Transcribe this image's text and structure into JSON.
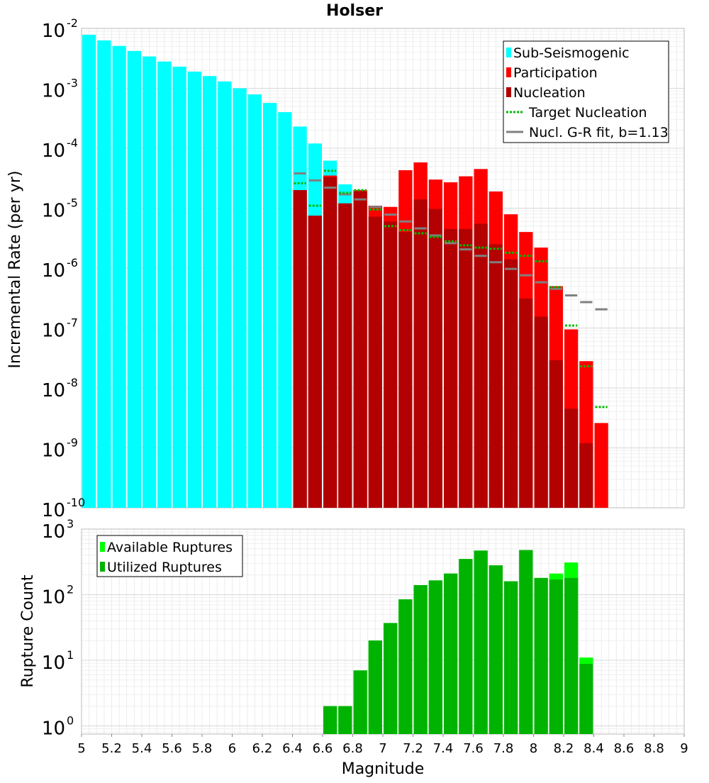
{
  "chart_data": [
    {
      "type": "bar",
      "title": "Holser",
      "ylabel": "Incremental Rate (per yr)",
      "xlim": [
        5,
        9
      ],
      "ylim": [
        1e-10,
        0.01
      ],
      "yscale": "log",
      "grid": true,
      "bar_width": 0.1,
      "y_tick_labels": [
        {
          "base": "10",
          "exp": "-10"
        },
        {
          "base": "10",
          "exp": "-9"
        },
        {
          "base": "10",
          "exp": "-8"
        },
        {
          "base": "10",
          "exp": "-7"
        },
        {
          "base": "10",
          "exp": "-6"
        },
        {
          "base": "10",
          "exp": "-5"
        },
        {
          "base": "10",
          "exp": "-4"
        },
        {
          "base": "10",
          "exp": "-3"
        },
        {
          "base": "10",
          "exp": "-2"
        }
      ],
      "legend": {
        "position": "top-right",
        "entries": [
          "Sub-Seismogenic",
          "Participation",
          "Nucleation",
          "Target Nucleation",
          "Nucl. G-R fit, b=1.13"
        ]
      },
      "colors": {
        "sub_seismogenic": "#00ffff",
        "participation": "#ff0000",
        "nucleation": "#b30000",
        "target_nucleation": "#00bb00",
        "gr_fit": "#808080"
      },
      "series": [
        {
          "name": "Sub-Seismogenic",
          "kind": "bars",
          "x": [
            5.05,
            5.15,
            5.25,
            5.35,
            5.45,
            5.55,
            5.65,
            5.75,
            5.85,
            5.95,
            6.05,
            6.15,
            6.25,
            6.35,
            6.45,
            6.55,
            6.65,
            6.75
          ],
          "values": [
            0.0078,
            0.0063,
            0.0051,
            0.0042,
            0.0034,
            0.0028,
            0.0023,
            0.0019,
            0.0016,
            0.0013,
            0.001,
            0.00079,
            0.00057,
            0.0004,
            0.00023,
            0.00012,
            6.2e-05,
            2.5e-05
          ]
        },
        {
          "name": "Participation",
          "kind": "bars",
          "x": [
            6.45,
            6.55,
            6.65,
            6.75,
            6.85,
            6.95,
            7.05,
            7.15,
            7.25,
            7.35,
            7.45,
            7.55,
            7.65,
            7.75,
            7.85,
            7.95,
            8.05,
            8.15,
            8.25,
            8.35,
            8.45
          ],
          "values": [
            2e-05,
            7.5e-06,
            3.5e-05,
            1.2e-05,
            2e-05,
            1.1e-05,
            1.05e-05,
            4.3e-05,
            5.8e-05,
            3e-05,
            2.7e-05,
            3.4e-05,
            4.5e-05,
            1.9e-05,
            7.9e-06,
            4e-06,
            2.2e-06,
            5e-07,
            9.5e-08,
            2.8e-08,
            2.6e-09
          ]
        },
        {
          "name": "Nucleation",
          "kind": "bars",
          "x": [
            6.45,
            6.55,
            6.65,
            6.75,
            6.85,
            6.95,
            7.05,
            7.15,
            7.25,
            7.35,
            7.45,
            7.55,
            7.65,
            7.75,
            7.85,
            7.95,
            8.05,
            8.15,
            8.25,
            8.35
          ],
          "values": [
            2e-05,
            7.5e-06,
            3.3e-05,
            1.2e-05,
            1.9e-05,
            7.2e-06,
            6e-06,
            4e-06,
            1.4e-05,
            9.7e-06,
            4.5e-06,
            4.5e-06,
            5.5e-06,
            2.5e-06,
            1.4e-06,
            3.1e-07,
            1.55e-07,
            2.9e-08,
            4.5e-09,
            1.2e-09
          ]
        },
        {
          "name": "Target Nucleation",
          "kind": "segments",
          "x": [
            6.45,
            6.55,
            6.65,
            6.75,
            6.85,
            6.95,
            7.05,
            7.15,
            7.25,
            7.35,
            7.45,
            7.55,
            7.65,
            7.75,
            7.85,
            7.95,
            8.05,
            8.15,
            8.25,
            8.35,
            8.45
          ],
          "values": [
            2.6e-05,
            1.1e-05,
            4.2e-05,
            1.8e-05,
            2e-05,
            9.5e-06,
            5e-06,
            4.3e-06,
            3.8e-06,
            3.3e-06,
            2.8e-06,
            2.4e-06,
            2.2e-06,
            2.1e-06,
            1.8e-06,
            1.6e-06,
            1.3e-06,
            4.8e-07,
            1.1e-07,
            2.3e-08,
            4.8e-09
          ]
        },
        {
          "name": "Nucl. G-R fit, b=1.13",
          "kind": "segments",
          "x": [
            6.45,
            6.55,
            6.65,
            6.75,
            6.85,
            6.95,
            7.05,
            7.15,
            7.25,
            7.35,
            7.45,
            7.55,
            7.65,
            7.75,
            7.85,
            7.95,
            8.05,
            8.15,
            8.25,
            8.35,
            8.45
          ],
          "values": [
            3.8e-05,
            2.9e-05,
            2.2e-05,
            1.7e-05,
            1.4e-05,
            1.05e-05,
            7.8e-06,
            6e-06,
            4.6e-06,
            3.5e-06,
            2.6e-06,
            2.05e-06,
            1.6e-06,
            1.25e-06,
            9.7e-07,
            7.6e-07,
            5.8e-07,
            4.5e-07,
            3.5e-07,
            2.7e-07,
            2.05e-07
          ]
        }
      ]
    },
    {
      "type": "bar",
      "xlabel": "Magnitude",
      "ylabel": "Rupture Count",
      "xlim": [
        5,
        9
      ],
      "ylim": [
        0.75,
        1000
      ],
      "yscale": "log",
      "grid": true,
      "bar_width": 0.1,
      "x_tick_labels": [
        "5",
        "5.2",
        "5.4",
        "5.6",
        "5.8",
        "6",
        "6.2",
        "6.4",
        "6.6",
        "6.8",
        "7",
        "7.2",
        "7.4",
        "7.6",
        "7.8",
        "8",
        "8.2",
        "8.4",
        "8.6",
        "8.8",
        "9"
      ],
      "y_tick_labels": [
        {
          "base": "10",
          "exp": "0"
        },
        {
          "base": "10",
          "exp": "1"
        },
        {
          "base": "10",
          "exp": "2"
        },
        {
          "base": "10",
          "exp": "3"
        }
      ],
      "legend": {
        "position": "top-left",
        "entries": [
          "Available Ruptures",
          "Utilized Ruptures"
        ]
      },
      "colors": {
        "available": "#00ff00",
        "utilized": "#00b300"
      },
      "series": [
        {
          "name": "Available Ruptures",
          "x": [
            6.65,
            6.75,
            6.85,
            6.95,
            7.05,
            7.15,
            7.25,
            7.35,
            7.45,
            7.55,
            7.65,
            7.75,
            7.85,
            7.95,
            8.05,
            8.15,
            8.25,
            8.35
          ],
          "values": [
            2,
            2,
            7,
            20,
            37,
            85,
            140,
            165,
            210,
            350,
            470,
            280,
            160,
            480,
            180,
            210,
            310,
            11
          ]
        },
        {
          "name": "Utilized Ruptures",
          "x": [
            6.65,
            6.75,
            6.85,
            6.95,
            7.05,
            7.15,
            7.25,
            7.35,
            7.45,
            7.55,
            7.65,
            7.75,
            7.85,
            7.95,
            8.05,
            8.15,
            8.25,
            8.35
          ],
          "values": [
            2,
            2,
            7,
            20,
            37,
            85,
            140,
            165,
            210,
            350,
            470,
            280,
            160,
            480,
            180,
            170,
            180,
            8.8
          ]
        }
      ]
    }
  ]
}
